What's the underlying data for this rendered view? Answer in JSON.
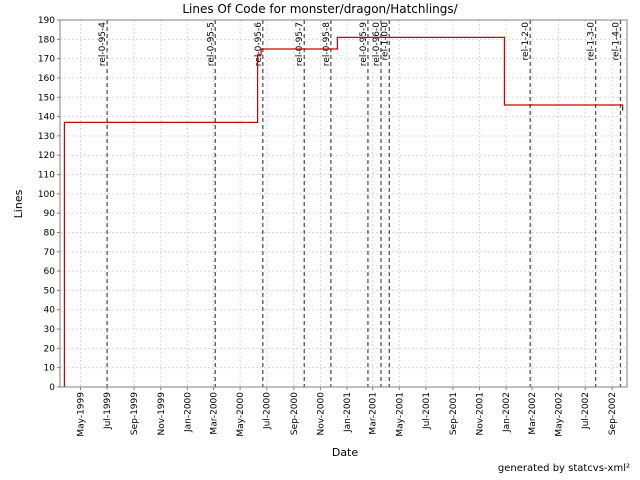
{
  "footer": "generated by statcvs-xml²",
  "chart_data": {
    "type": "line",
    "title": "Lines Of Code for monster/dragon/Hatchlings/",
    "xlabel": "Date",
    "ylabel": "Lines",
    "ylim": [
      0,
      190
    ],
    "y_ticks": [
      0,
      10,
      20,
      30,
      40,
      50,
      60,
      70,
      80,
      90,
      100,
      110,
      120,
      130,
      140,
      150,
      160,
      170,
      180,
      190
    ],
    "x_range": [
      "1999-03-15",
      "2002-10-05"
    ],
    "x_ticks": [
      {
        "date": "1999-05-01",
        "label": "May-1999"
      },
      {
        "date": "1999-07-01",
        "label": "Jul-1999"
      },
      {
        "date": "1999-09-01",
        "label": "Sep-1999"
      },
      {
        "date": "1999-11-01",
        "label": "Nov-1999"
      },
      {
        "date": "2000-01-01",
        "label": "Jan-2000"
      },
      {
        "date": "2000-03-01",
        "label": "Mar-2000"
      },
      {
        "date": "2000-05-01",
        "label": "May-2000"
      },
      {
        "date": "2000-07-01",
        "label": "Jul-2000"
      },
      {
        "date": "2000-09-01",
        "label": "Sep-2000"
      },
      {
        "date": "2000-11-01",
        "label": "Nov-2000"
      },
      {
        "date": "2001-01-01",
        "label": "Jan-2001"
      },
      {
        "date": "2001-03-01",
        "label": "Mar-2001"
      },
      {
        "date": "2001-05-01",
        "label": "May-2001"
      },
      {
        "date": "2001-07-01",
        "label": "Jul-2001"
      },
      {
        "date": "2001-09-01",
        "label": "Sep-2001"
      },
      {
        "date": "2001-11-01",
        "label": "Nov-2001"
      },
      {
        "date": "2002-01-01",
        "label": "Jan-2002"
      },
      {
        "date": "2002-03-01",
        "label": "Mar-2002"
      },
      {
        "date": "2002-05-01",
        "label": "May-2002"
      },
      {
        "date": "2002-07-01",
        "label": "Jul-2002"
      },
      {
        "date": "2002-09-01",
        "label": "Sep-2002"
      }
    ],
    "grid": true,
    "series": [
      {
        "color": "#cc0000",
        "points": [
          {
            "x": "1999-03-25",
            "y": 0
          },
          {
            "x": "1999-03-25",
            "y": 137
          },
          {
            "x": "2000-06-10",
            "y": 137
          },
          {
            "x": "2000-06-10",
            "y": 172
          },
          {
            "x": "2000-06-18",
            "y": 172
          },
          {
            "x": "2000-06-18",
            "y": 175
          },
          {
            "x": "2000-12-10",
            "y": 175
          },
          {
            "x": "2000-12-10",
            "y": 181
          },
          {
            "x": "2001-12-28",
            "y": 181
          },
          {
            "x": "2001-12-28",
            "y": 146
          },
          {
            "x": "2002-09-25",
            "y": 146
          },
          {
            "x": "2002-09-25",
            "y": 143
          }
        ]
      }
    ],
    "markers": [
      {
        "date": "1999-07-01",
        "label": "rel-0-95-4"
      },
      {
        "date": "2000-03-05",
        "label": "rel-0-95-5"
      },
      {
        "date": "2000-06-22",
        "label": "rel-0-95-6"
      },
      {
        "date": "2000-09-25",
        "label": "rel-0-95-7"
      },
      {
        "date": "2000-11-25",
        "label": "rel-0-95-8"
      },
      {
        "date": "2001-02-18",
        "label": "rel-0-95-9"
      },
      {
        "date": "2001-03-20",
        "label": "rel-0-96-0"
      },
      {
        "date": "2001-04-08",
        "label": "rel-1-0-0"
      },
      {
        "date": "2002-02-25",
        "label": "rel-1-2-0"
      },
      {
        "date": "2002-07-25",
        "label": "rel-1-3-0"
      },
      {
        "date": "2002-09-20",
        "label": "rel-1-4-0"
      }
    ]
  }
}
